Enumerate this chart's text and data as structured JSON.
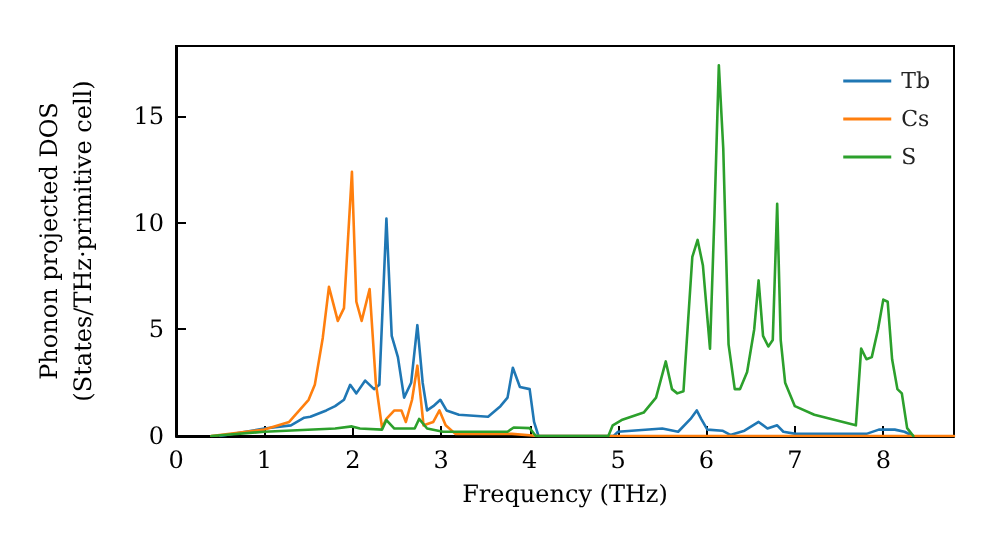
{
  "chart_data": {
    "type": "line",
    "xlabel": "Frequency (THz)",
    "ylabel": "Phonon projected DOS\n(States/THz·primitive cell)",
    "xlim": [
      0,
      8.8
    ],
    "xticks": [
      0,
      1,
      2,
      3,
      4,
      5,
      6,
      7,
      8
    ],
    "ylim": [
      0,
      18.3
    ],
    "yticks": [
      0,
      5,
      10,
      15
    ],
    "grid": false,
    "legend": "top right",
    "marker": "none",
    "line_style": "solid",
    "series": [
      {
        "name": "Tb",
        "color": "#1f77b4",
        "x": [
          0.5,
          1,
          1.3,
          1.45,
          1.52,
          1.7,
          1.8,
          1.9,
          1.97,
          2.04,
          2.14,
          2.24,
          2.3,
          2.38,
          2.44,
          2.51,
          2.58,
          2.66,
          2.73,
          2.79,
          2.84,
          2.91,
          2.99,
          3.06,
          3.2,
          3.53,
          3.67,
          3.75,
          3.81,
          3.89,
          4.0,
          4.05,
          4.1,
          4.95,
          5.0,
          5.5,
          5.68,
          5.82,
          5.89,
          5.94,
          6.01,
          6.18,
          6.27,
          6.43,
          6.59,
          6.69,
          6.8,
          6.87,
          7.01,
          7.81,
          7.95,
          8.13,
          8.24,
          8.34
        ],
        "values": [
          0,
          0.35,
          0.5,
          0.86,
          0.9,
          1.2,
          1.4,
          1.7,
          2.4,
          2.0,
          2.6,
          2.2,
          2.4,
          10.2,
          4.7,
          3.7,
          1.8,
          2.5,
          5.2,
          2.5,
          1.2,
          1.4,
          1.7,
          1.2,
          1.0,
          0.9,
          1.4,
          1.8,
          3.2,
          2.3,
          2.2,
          0.66,
          0,
          0,
          0.2,
          0.35,
          0.2,
          0.8,
          1.2,
          0.8,
          0.3,
          0.25,
          0.05,
          0.25,
          0.66,
          0.35,
          0.5,
          0.2,
          0.1,
          0.1,
          0.3,
          0.3,
          0.2,
          0
        ]
      },
      {
        "name": "Cs",
        "color": "#ff7f0e",
        "x": [
          0.4,
          1,
          1.28,
          1.5,
          1.57,
          1.66,
          1.73,
          1.83,
          1.9,
          1.99,
          2.04,
          2.1,
          2.19,
          2.26,
          2.33,
          2.38,
          2.47,
          2.55,
          2.6,
          2.67,
          2.73,
          2.8,
          2.91,
          2.98,
          3.05,
          3.16,
          3.8,
          4.1,
          8.8
        ],
        "values": [
          0,
          0.3,
          0.66,
          1.7,
          2.4,
          4.6,
          7.0,
          5.4,
          6.0,
          12.4,
          6.3,
          5.4,
          6.9,
          2.5,
          0.4,
          0.8,
          1.2,
          1.2,
          0.66,
          1.7,
          3.3,
          0.5,
          0.66,
          1.2,
          0.5,
          0.1,
          0.1,
          0,
          0
        ]
      },
      {
        "name": "S",
        "color": "#2ca02c",
        "x": [
          0.4,
          1,
          1.8,
          1.99,
          2.08,
          2.33,
          2.38,
          2.47,
          2.7,
          2.75,
          2.84,
          3.02,
          3.75,
          3.82,
          4.0,
          4.07,
          4.89,
          4.94,
          5.04,
          5.29,
          5.43,
          5.54,
          5.61,
          5.67,
          5.74,
          5.84,
          5.9,
          5.96,
          6.04,
          6.09,
          6.14,
          6.19,
          6.25,
          6.32,
          6.38,
          6.46,
          6.54,
          6.59,
          6.64,
          6.7,
          6.75,
          6.8,
          6.84,
          6.89,
          7.0,
          7.22,
          7.69,
          7.75,
          7.81,
          7.87,
          7.94,
          8.0,
          8.05,
          8.1,
          8.16,
          8.21,
          8.27,
          8.34
        ],
        "values": [
          0,
          0.2,
          0.35,
          0.45,
          0.35,
          0.3,
          0.75,
          0.35,
          0.35,
          0.8,
          0.35,
          0.2,
          0.2,
          0.4,
          0.37,
          0,
          0,
          0.5,
          0.75,
          1.1,
          1.8,
          3.5,
          2.2,
          2.0,
          2.1,
          8.4,
          9.2,
          8.0,
          4.1,
          10.3,
          17.4,
          13.5,
          4.3,
          2.2,
          2.2,
          3.0,
          5.0,
          7.3,
          4.7,
          4.2,
          4.5,
          10.9,
          4.5,
          2.5,
          1.4,
          1.0,
          0.5,
          4.1,
          3.6,
          3.7,
          5.0,
          6.4,
          6.3,
          3.6,
          2.2,
          2.0,
          0.37,
          0
        ]
      }
    ]
  }
}
